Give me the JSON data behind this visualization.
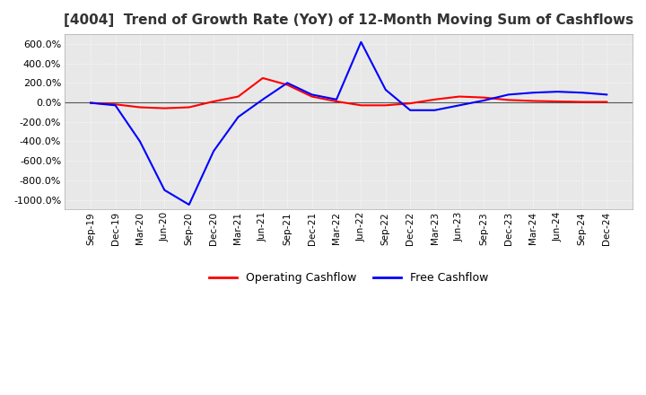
{
  "title": "[4004]  Trend of Growth Rate (YoY) of 12-Month Moving Sum of Cashflows",
  "title_fontsize": 11,
  "ylim": [
    -1100,
    700
  ],
  "yticks": [
    -1000,
    -800,
    -600,
    -400,
    -200,
    0,
    200,
    400,
    600
  ],
  "background_color": "#ffffff",
  "plot_bg_color": "#e8e8e8",
  "grid_color": "#ffffff",
  "legend_labels": [
    "Operating Cashflow",
    "Free Cashflow"
  ],
  "legend_colors": [
    "#ff0000",
    "#0000ff"
  ],
  "x_labels": [
    "Sep-19",
    "Dec-19",
    "Mar-20",
    "Jun-20",
    "Sep-20",
    "Dec-20",
    "Mar-21",
    "Jun-21",
    "Sep-21",
    "Dec-21",
    "Mar-22",
    "Jun-22",
    "Sep-22",
    "Dec-22",
    "Mar-23",
    "Jun-23",
    "Sep-23",
    "Dec-23",
    "Mar-24",
    "Jun-24",
    "Sep-24",
    "Dec-24"
  ],
  "operating_cashflow": [
    -5,
    -20,
    -50,
    -60,
    -50,
    10,
    60,
    250,
    180,
    60,
    10,
    -30,
    -30,
    -10,
    30,
    60,
    50,
    25,
    15,
    10,
    5,
    5
  ],
  "free_cashflow": [
    -5,
    -30,
    -400,
    -900,
    -1050,
    -500,
    -150,
    30,
    200,
    80,
    30,
    620,
    130,
    -80,
    -80,
    -30,
    20,
    80,
    100,
    110,
    100,
    80
  ]
}
